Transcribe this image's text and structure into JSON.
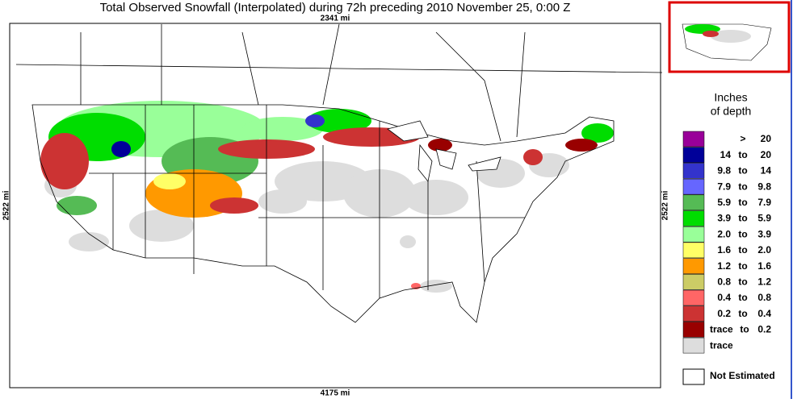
{
  "header": {
    "title": "Total Observed Snowfall (Interpolated) during 72h preceding 2010 November 25, 0:00 Z"
  },
  "map": {
    "top_label": "2341 mi",
    "bottom_label": "4175 mi",
    "left_label": "2522 mi",
    "right_label": "2522 mi"
  },
  "legend": {
    "title": [
      "Inches",
      "of depth"
    ],
    "items": [
      {
        "color": "#990099",
        "sep": ">",
        "high": "20"
      },
      {
        "color": "#000099",
        "low": "14",
        "sep": "to",
        "high": "20"
      },
      {
        "color": "#3333cc",
        "low": "9.8",
        "sep": "to",
        "high": "14"
      },
      {
        "color": "#6666ff",
        "low": "7.9",
        "sep": "to",
        "high": "9.8"
      },
      {
        "color": "#55bb55",
        "low": "5.9",
        "sep": "to",
        "high": "7.9"
      },
      {
        "color": "#00dd00",
        "low": "3.9",
        "sep": "to",
        "high": "5.9"
      },
      {
        "color": "#99ff99",
        "low": "2.0",
        "sep": "to",
        "high": "3.9"
      },
      {
        "color": "#ffff66",
        "low": "1.6",
        "sep": "to",
        "high": "2.0"
      },
      {
        "color": "#ff9900",
        "low": "1.2",
        "sep": "to",
        "high": "1.6"
      },
      {
        "color": "#cccc66",
        "low": "0.8",
        "sep": "to",
        "high": "1.2"
      },
      {
        "color": "#ff6666",
        "low": "0.4",
        "sep": "to",
        "high": "0.8"
      },
      {
        "color": "#cc3333",
        "low": "0.2",
        "sep": "to",
        "high": "0.4"
      },
      {
        "color": "#990000",
        "low": "trace",
        "sep": "to",
        "high": "0.2"
      },
      {
        "color": "#dddddd",
        "low": "trace"
      }
    ],
    "not_estimated": {
      "color": "#ffffff",
      "label": "Not Estimated"
    }
  }
}
